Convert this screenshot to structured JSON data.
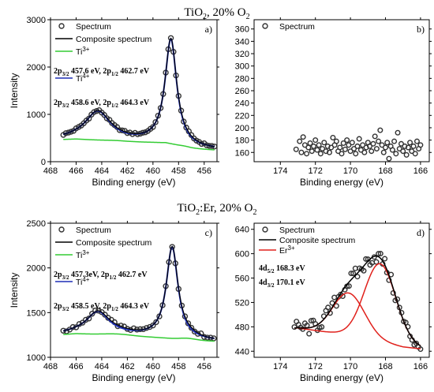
{
  "titles": {
    "top": {
      "main": "TiO",
      "sub": "2",
      "rest": ", 20% O",
      "sub2": "2"
    },
    "bottom": {
      "main": "TiO",
      "sub": "2",
      "rest": ":Er, 20% O",
      "sub2": "2"
    }
  },
  "colors": {
    "spectrum_marker": "#333333",
    "composite": "#000000",
    "ti3": "#33cc33",
    "ti4": "#1f2fb5",
    "er3": "#e0201b",
    "background": "#1f3fb5"
  },
  "chart_data": [
    {
      "id": "a",
      "panel_label": "a)",
      "type": "scatter",
      "xlabel": "Binding energy (eV)",
      "ylabel": "Intensity",
      "xlim": [
        468,
        455
      ],
      "ylim": [
        0,
        3000
      ],
      "xticks": [
        468,
        466,
        464,
        462,
        460,
        458,
        456
      ],
      "yticks": [
        0,
        1000,
        2000,
        3000
      ],
      "legend": [
        {
          "label": "Spectrum",
          "kind": "marker"
        },
        {
          "label": "Composite spectrum",
          "kind": "line",
          "color": "#000000"
        },
        {
          "label": "Ti3+",
          "main": "Ti",
          "sup": "3+",
          "kind": "line",
          "color": "#33cc33"
        },
        {
          "label": "Ti4+",
          "main": "Ti",
          "sup": "4+",
          "kind": "line",
          "color": "#1f2fb5"
        }
      ],
      "annotations": [
        {
          "text": "2p3/2 457.6 eV, 2p1/2 462.7 eV",
          "parts": [
            [
              "2p",
              "3/2",
              " 457.6 eV, 2p",
              "1/2",
              " 462.7 eV"
            ]
          ]
        },
        {
          "text": "2p3/2 458.6 eV, 2p1/2 464.3 eV",
          "parts": [
            [
              "2p",
              "3/2",
              " 458.6 eV, 2p",
              "1/2",
              " 464.3 eV"
            ]
          ]
        }
      ],
      "model": {
        "background": [
          [
            467,
            470
          ],
          [
            466,
            480
          ],
          [
            464,
            450
          ],
          [
            462,
            420
          ],
          [
            460,
            410
          ],
          [
            459,
            400
          ],
          [
            458,
            330
          ],
          [
            457,
            280
          ],
          [
            455.2,
            250
          ]
        ],
        "ti4_peaks": [
          {
            "center": 458.6,
            "height": 2200,
            "width": 0.55
          },
          {
            "center": 464.3,
            "height": 600,
            "width": 1.2
          }
        ],
        "ti3_peaks": [
          {
            "center": 457.6,
            "height": 25,
            "width": 0.7
          },
          {
            "center": 462.7,
            "height": 15,
            "width": 1.0
          }
        ]
      },
      "spectrum_x_range": [
        467,
        455.2
      ],
      "spectrum_step": 0.2
    },
    {
      "id": "b",
      "panel_label": "b)",
      "type": "scatter",
      "xlabel": "Binding energy (eV)",
      "ylabel": "",
      "xlim": [
        175.5,
        165.5
      ],
      "ylim": [
        145,
        375
      ],
      "xticks": [
        174,
        172,
        170,
        168,
        166
      ],
      "yticks": [
        160,
        180,
        200,
        220,
        240,
        260,
        280,
        300,
        320,
        340,
        360
      ],
      "legend": [
        {
          "label": "Spectrum",
          "kind": "marker"
        }
      ],
      "points": [
        [
          173.1,
          165
        ],
        [
          172.9,
          178
        ],
        [
          172.8,
          160
        ],
        [
          172.7,
          185
        ],
        [
          172.6,
          172
        ],
        [
          172.5,
          158
        ],
        [
          172.4,
          168
        ],
        [
          172.3,
          175
        ],
        [
          172.2,
          162
        ],
        [
          172.1,
          170
        ],
        [
          172.0,
          180
        ],
        [
          171.9,
          164
        ],
        [
          171.8,
          172
        ],
        [
          171.7,
          158
        ],
        [
          171.6,
          166
        ],
        [
          171.5,
          176
        ],
        [
          171.4,
          162
        ],
        [
          171.3,
          170
        ],
        [
          171.2,
          160
        ],
        [
          171.1,
          168
        ],
        [
          171.0,
          184
        ],
        [
          170.9,
          172
        ],
        [
          170.8,
          178
        ],
        [
          170.7,
          162
        ],
        [
          170.6,
          168
        ],
        [
          170.5,
          158
        ],
        [
          170.4,
          175
        ],
        [
          170.3,
          165
        ],
        [
          170.2,
          180
        ],
        [
          170.1,
          172
        ],
        [
          170.0,
          162
        ],
        [
          169.9,
          176
        ],
        [
          169.8,
          166
        ],
        [
          169.7,
          158
        ],
        [
          169.6,
          170
        ],
        [
          169.5,
          182
        ],
        [
          169.4,
          164
        ],
        [
          169.3,
          172
        ],
        [
          169.2,
          160
        ],
        [
          169.1,
          168
        ],
        [
          169.0,
          176
        ],
        [
          168.9,
          170
        ],
        [
          168.8,
          162
        ],
        [
          168.7,
          174
        ],
        [
          168.6,
          186
        ],
        [
          168.5,
          166
        ],
        [
          168.4,
          178
        ],
        [
          168.3,
          196
        ],
        [
          168.2,
          172
        ],
        [
          168.1,
          160
        ],
        [
          168.0,
          168
        ],
        [
          167.9,
          176
        ],
        [
          167.8,
          150
        ],
        [
          167.7,
          170
        ],
        [
          167.6,
          164
        ],
        [
          167.5,
          178
        ],
        [
          167.4,
          158
        ],
        [
          167.3,
          192
        ],
        [
          167.2,
          166
        ],
        [
          167.1,
          174
        ],
        [
          167.0,
          162
        ],
        [
          166.9,
          170
        ],
        [
          166.8,
          156
        ],
        [
          166.7,
          168
        ],
        [
          166.6,
          176
        ],
        [
          166.5,
          162
        ],
        [
          166.4,
          170
        ],
        [
          166.3,
          158
        ],
        [
          166.2,
          178
        ],
        [
          166.1,
          166
        ],
        [
          166.0,
          172
        ]
      ]
    },
    {
      "id": "c",
      "panel_label": "c)",
      "type": "scatter",
      "xlabel": "Binding energy (eV)",
      "ylabel": "Intensity",
      "xlim": [
        468,
        455
      ],
      "ylim": [
        1000,
        2500
      ],
      "xticks": [
        468,
        466,
        464,
        462,
        460,
        458,
        456
      ],
      "yticks": [
        1000,
        1500,
        2000,
        2500
      ],
      "legend": [
        {
          "label": "Spectrum",
          "kind": "marker"
        },
        {
          "label": "Composite spectrum",
          "kind": "line",
          "color": "#000000"
        },
        {
          "label": "Ti3+",
          "main": "Ti",
          "sup": "3+",
          "kind": "line",
          "color": "#33cc33"
        },
        {
          "label": "Ti4+",
          "main": "Ti",
          "sup": "4+",
          "kind": "line",
          "color": "#1f2fb5"
        }
      ],
      "annotations": [
        {
          "text": "2p3/2 457.3eV, 2p1/2 462.7 eV",
          "parts": [
            [
              "2p",
              "3/2",
              " 457.3eV, 2p",
              "1/2",
              " 462.7 eV"
            ]
          ]
        },
        {
          "text": "2p3/2 458.5 eV, 2p1/2 464.3 eV",
          "parts": [
            [
              "2p",
              "3/2",
              " 458.5 eV, 2p",
              "1/2",
              " 464.3 eV"
            ]
          ]
        }
      ],
      "model": {
        "background": [
          [
            467,
            1255
          ],
          [
            466,
            1265
          ],
          [
            464,
            1255
          ],
          [
            462,
            1240
          ],
          [
            460,
            1225
          ],
          [
            459,
            1215
          ],
          [
            458,
            1200
          ],
          [
            457,
            1190
          ],
          [
            455.2,
            1180
          ]
        ],
        "ti4_peaks": [
          {
            "center": 458.5,
            "height": 1020,
            "width": 0.55
          },
          {
            "center": 464.3,
            "height": 250,
            "width": 1.1
          }
        ],
        "ti3_peaks": [
          {
            "center": 457.3,
            "height": 20,
            "width": 0.7
          },
          {
            "center": 462.7,
            "height": 15,
            "width": 1.0
          }
        ]
      },
      "spectrum_x_range": [
        467,
        455.2
      ],
      "spectrum_step": 0.25
    },
    {
      "id": "d",
      "panel_label": "d)",
      "type": "scatter",
      "xlabel": "Binding energy (eV)",
      "ylabel": "",
      "xlim": [
        175.5,
        165.5
      ],
      "ylim": [
        430,
        650
      ],
      "xticks": [
        174,
        172,
        170,
        168,
        166
      ],
      "yticks": [
        440,
        480,
        520,
        560,
        600,
        640
      ],
      "legend": [
        {
          "label": "Spectrum",
          "kind": "marker"
        },
        {
          "label": "Composite spectrum",
          "kind": "line",
          "color": "#000000"
        },
        {
          "label": "Er3+",
          "main": "Er",
          "sup": "3+",
          "kind": "line",
          "color": "#e0201b"
        }
      ],
      "annotations": [
        {
          "text": "4d5/2 168.3 eV",
          "parts": [
            [
              "4d",
              "5/2",
              " 168.3 eV"
            ]
          ]
        },
        {
          "text": "4d3/2 170.1 eV",
          "parts": [
            [
              "4d",
              "3/2",
              " 170.1 eV"
            ]
          ]
        }
      ],
      "model": {
        "baseline": [
          [
            173,
            478
          ],
          [
            171,
            470
          ],
          [
            169,
            460
          ],
          [
            167,
            447
          ],
          [
            166,
            444
          ]
        ],
        "er_peaks": [
          {
            "center": 168.3,
            "height": 128,
            "width": 0.9
          },
          {
            "center": 170.1,
            "height": 70,
            "width": 0.9
          }
        ]
      },
      "spectrum_x_range": [
        173.2,
        166.0
      ],
      "spectrum_step": 0.12
    }
  ]
}
